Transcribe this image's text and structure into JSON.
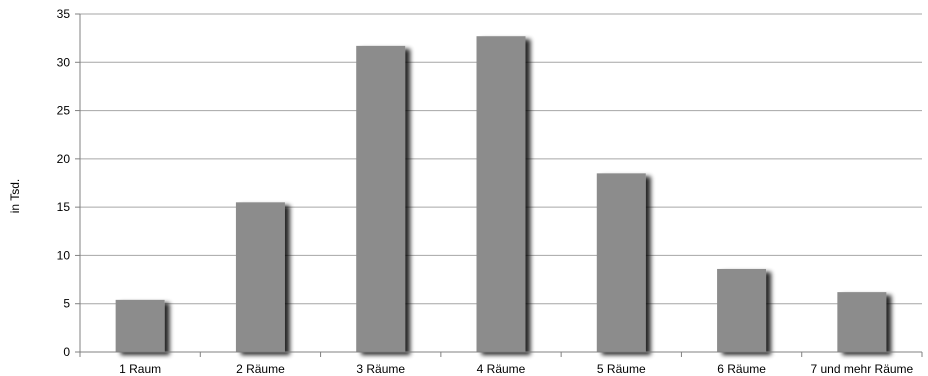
{
  "chart_data": {
    "type": "bar",
    "categories": [
      "1 Raum",
      "2 Räume",
      "3 Räume",
      "4 Räume",
      "5 Räume",
      "6 Räume",
      "7 und mehr Räume"
    ],
    "values": [
      5.4,
      15.5,
      31.7,
      32.7,
      18.5,
      8.6,
      6.2
    ],
    "title": "",
    "xlabel": "",
    "ylabel": "in Tsd.",
    "ylim": [
      0,
      35
    ],
    "yticks": [
      0,
      5,
      10,
      15,
      20,
      25,
      30,
      35
    ],
    "grid": true,
    "legend": "none",
    "bar_color": "#8c8c8c",
    "shadow_color": "#2a2a2a"
  }
}
